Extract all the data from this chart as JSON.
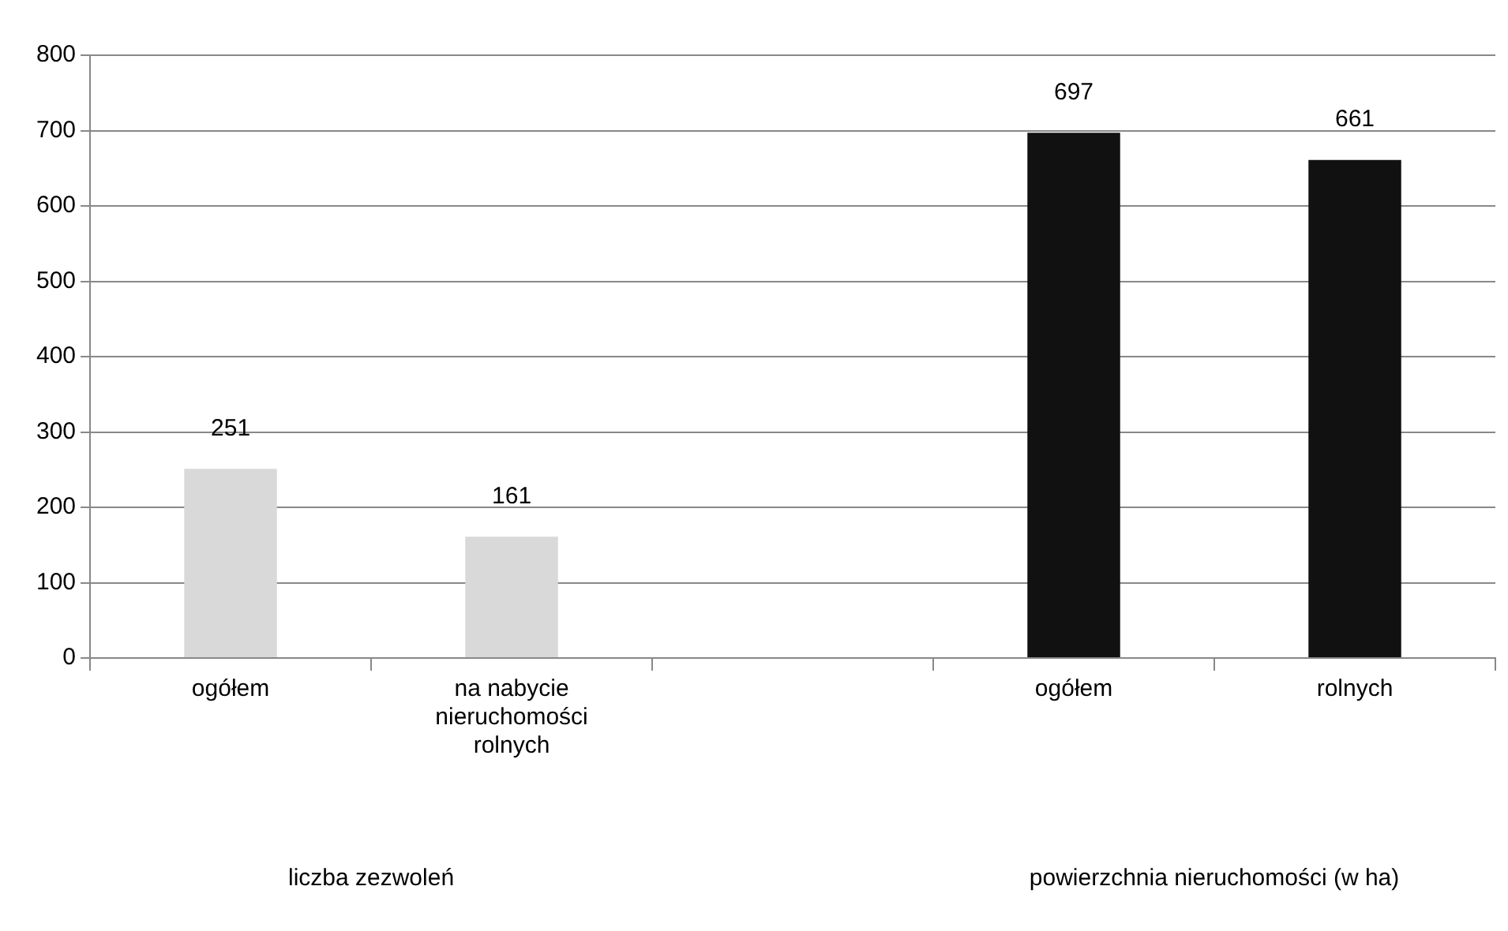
{
  "chart_data": {
    "type": "bar",
    "categories": [
      "ogółem",
      "na nabycie nieruchomości rolnych",
      null,
      "ogółem",
      "rolnych"
    ],
    "values": [
      251,
      161,
      null,
      697,
      661
    ],
    "colors": [
      "#d9d9d9",
      "#d9d9d9",
      null,
      "#111111",
      "#111111"
    ],
    "ylim": [
      0,
      800
    ],
    "yticks": [
      0,
      100,
      200,
      300,
      400,
      500,
      600,
      700,
      800
    ],
    "grid": "y",
    "legend": false,
    "data_labels": true,
    "annotations": [
      "liczba zezwoleń",
      "powierzchnia nieruchomości (w ha)"
    ]
  }
}
